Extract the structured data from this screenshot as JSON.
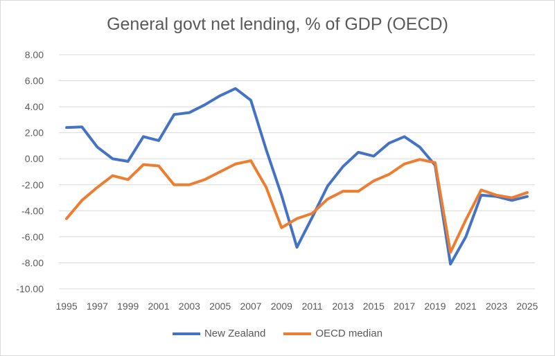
{
  "chart_data": {
    "type": "line",
    "title": "General govt net lending, % of GDP (OECD)",
    "xlabel": "",
    "ylabel": "",
    "ylim": [
      -10,
      8
    ],
    "yticks": [
      "8.00",
      "6.00",
      "4.00",
      "2.00",
      "0.00",
      "-2.00",
      "-4.00",
      "-6.00",
      "-8.00",
      "-10.00"
    ],
    "x": [
      1995,
      1996,
      1997,
      1998,
      1999,
      2000,
      2001,
      2002,
      2003,
      2004,
      2005,
      2006,
      2007,
      2008,
      2009,
      2010,
      2011,
      2012,
      2013,
      2014,
      2015,
      2016,
      2017,
      2018,
      2019,
      2020,
      2021,
      2022,
      2023,
      2024,
      2025
    ],
    "xticks": [
      "1995",
      "1997",
      "1999",
      "2001",
      "2003",
      "2005",
      "2007",
      "2009",
      "2011",
      "2013",
      "2015",
      "2017",
      "2019",
      "2021",
      "2023",
      "2025"
    ],
    "grid": true,
    "legend": "bottom",
    "series": [
      {
        "name": "New Zealand",
        "color": "#4472c4",
        "values": [
          2.4,
          2.45,
          0.9,
          0.0,
          -0.2,
          1.7,
          1.4,
          3.4,
          3.55,
          4.15,
          4.85,
          5.4,
          4.5,
          0.7,
          -2.8,
          -6.8,
          -4.5,
          -2.1,
          -0.6,
          0.5,
          0.2,
          1.2,
          1.7,
          0.9,
          -0.5,
          -8.1,
          -6.0,
          -2.8,
          -2.9,
          -3.2,
          -2.9
        ]
      },
      {
        "name": "OECD median",
        "color": "#ed7d31",
        "values": [
          -4.6,
          -3.2,
          -2.2,
          -1.3,
          -1.6,
          -0.45,
          -0.55,
          -2.0,
          -2.0,
          -1.6,
          -1.0,
          -0.4,
          -0.15,
          -2.2,
          -5.3,
          -4.6,
          -4.2,
          -3.1,
          -2.5,
          -2.5,
          -1.7,
          -1.2,
          -0.4,
          -0.05,
          -0.3,
          -7.2,
          -4.7,
          -2.4,
          -2.8,
          -3.0,
          -2.6
        ]
      }
    ]
  }
}
